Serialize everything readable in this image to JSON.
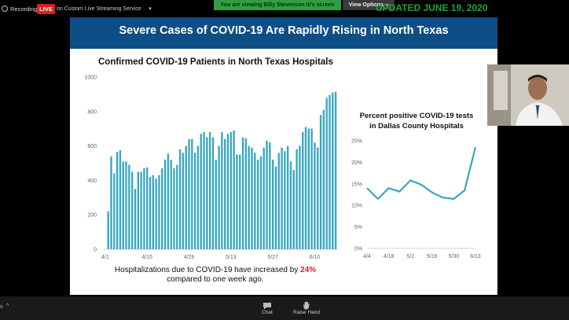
{
  "topbar": {
    "recording_label": "Recording",
    "live_label": "LIVE",
    "stream_label": "on Custom Live Streaming Service",
    "share_banner": "You are viewing Billy Stevenson III's screen",
    "view_options_label": "View Options"
  },
  "slide": {
    "updated_text": "UPDATED JUNE 19, 2020",
    "title": "Severe Cases of COVID-19 Are Rapidly Rising in North Texas",
    "left_chart_title": "Confirmed COVID-19 Patients in North Texas Hospitals",
    "right_chart_title_line1": "Percent positive COVID-19 tests",
    "right_chart_title_line2": "in Dallas County Hospitals",
    "caption_line1_pre": "Hospitalizations due to COVID-19 have increased by ",
    "caption_highlight": "24%",
    "caption_line2": "compared to one week ago."
  },
  "toolbar": {
    "chat_label": "Chat",
    "raise_hand_label": "Raise Hand",
    "left_fragment": "s",
    "left_arrow": "^"
  },
  "colors": {
    "header_blue": "#0e4e86",
    "bar_color": "#39a6c4",
    "line_color": "#39a6c4",
    "live_red": "#d9201e",
    "banner_green": "#2ea043",
    "highlight_red": "#d4202a"
  },
  "chart_data": [
    {
      "type": "bar",
      "title": "Confirmed COVID-19 Patients in North Texas Hospitals",
      "xlabel": "",
      "ylabel": "",
      "ylim": [
        0,
        1000
      ],
      "yticks": [
        0,
        200,
        400,
        600,
        800,
        1000
      ],
      "xtick_labels": [
        "4/1",
        "4/15",
        "4/29",
        "5/13",
        "5/27",
        "6/10"
      ],
      "xtick_indices": [
        0,
        14,
        28,
        42,
        56,
        70
      ],
      "values": [
        0,
        220,
        540,
        440,
        565,
        575,
        510,
        510,
        490,
        450,
        350,
        450,
        450,
        470,
        475,
        420,
        430,
        410,
        430,
        470,
        520,
        555,
        520,
        470,
        490,
        580,
        560,
        600,
        640,
        640,
        560,
        600,
        670,
        680,
        650,
        680,
        650,
        520,
        600,
        680,
        640,
        670,
        680,
        690,
        550,
        550,
        650,
        645,
        600,
        590,
        560,
        520,
        540,
        590,
        630,
        620,
        520,
        480,
        560,
        590,
        570,
        600,
        510,
        460,
        580,
        600,
        680,
        710,
        700,
        700,
        620,
        590,
        780,
        810,
        880,
        895,
        910,
        915
      ],
      "grid": false
    },
    {
      "type": "line",
      "title": "Percent positive COVID-19 tests in Dallas County Hospitals",
      "xlabel": "",
      "ylabel": "",
      "ylim": [
        0,
        25
      ],
      "yticks": [
        "0%",
        "5%",
        "10%",
        "15%",
        "20%",
        "25%"
      ],
      "categories": [
        "4/4",
        "4/11",
        "4/18",
        "4/25",
        "5/2",
        "5/9",
        "5/16",
        "5/23",
        "5/30",
        "6/6",
        "6/13"
      ],
      "xtick_labels": [
        "4/4",
        "4/18",
        "5/2",
        "5/16",
        "5/30",
        "6/13"
      ],
      "values": [
        14.0,
        11.5,
        14.0,
        13.2,
        15.8,
        14.8,
        13.0,
        11.8,
        11.5,
        13.5,
        23.5
      ],
      "grid": false
    }
  ]
}
